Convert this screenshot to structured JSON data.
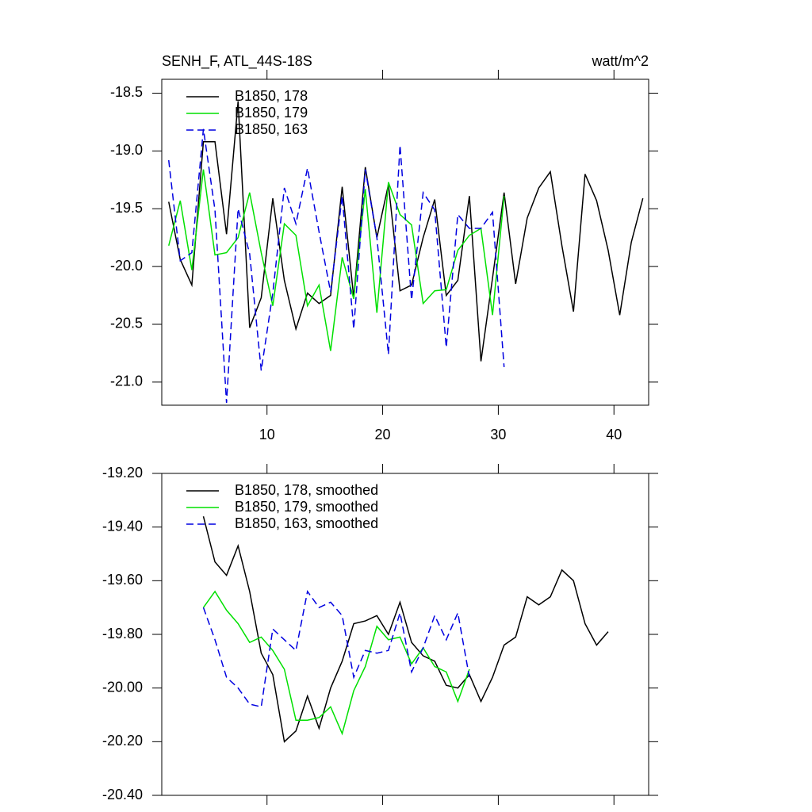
{
  "chart_data": [
    {
      "type": "line",
      "title": "SENH_F, ATL_44S-18S",
      "units": "watt/m^2",
      "x": [
        1.5,
        2.5,
        3.5,
        4.5,
        5.5,
        6.5,
        7.5,
        8.5,
        9.5,
        10.5,
        11.5,
        12.5,
        13.5,
        14.5,
        15.5,
        16.5,
        17.5,
        18.5,
        19.5,
        20.5,
        21.5,
        22.5,
        23.5,
        24.5,
        25.5,
        26.5,
        27.5,
        28.5,
        29.5,
        30.5,
        31.5,
        32.5,
        33.5,
        34.5,
        35.5,
        36.5,
        37.5,
        38.5,
        39.5,
        40.5,
        41.5,
        42.5
      ],
      "series": [
        {
          "name": "B1850, 178",
          "color": "#000000",
          "dash": false,
          "values": [
            -19.44,
            -19.94,
            -20.16,
            -18.92,
            -18.92,
            -19.72,
            -18.57,
            -20.53,
            -20.27,
            -19.41,
            -20.12,
            -20.54,
            -20.23,
            -20.32,
            -20.25,
            -19.31,
            -20.27,
            -19.14,
            -19.75,
            -19.29,
            -20.21,
            -20.16,
            -19.75,
            -19.42,
            -20.25,
            -20.12,
            -19.39,
            -20.82,
            -20.1,
            -19.36,
            -20.15,
            -19.58,
            -19.32,
            -19.18,
            -19.82,
            -20.39,
            -19.2,
            -19.43,
            -19.86,
            -20.42,
            -19.79,
            -19.41
          ]
        },
        {
          "name": "B1850, 179",
          "color": "#00e000",
          "dash": false,
          "values": [
            -19.82,
            -19.43,
            -20.03,
            -19.16,
            -19.9,
            -19.88,
            -19.75,
            -19.36,
            -19.88,
            -20.34,
            -19.63,
            -19.73,
            -20.34,
            -20.16,
            -20.73,
            -19.92,
            -20.28,
            -19.33,
            -20.4,
            -19.27,
            -19.55,
            -19.64,
            -20.32,
            -20.21,
            -20.2,
            -19.86,
            -19.73,
            -19.67,
            -20.42,
            -19.39,
            null,
            null,
            null,
            null,
            null,
            null,
            null,
            null,
            null,
            null,
            null,
            null
          ]
        },
        {
          "name": "B1850, 163",
          "color": "#0000e0",
          "dash": true,
          "values": [
            -19.08,
            -19.95,
            -19.88,
            -18.81,
            -19.51,
            -21.18,
            -19.5,
            -19.89,
            -20.9,
            -20.23,
            -19.32,
            -19.63,
            -19.15,
            -19.7,
            -20.22,
            -19.39,
            -20.54,
            -19.16,
            -19.75,
            -20.76,
            -18.95,
            -20.29,
            -19.36,
            -19.51,
            -20.7,
            -19.55,
            -19.67,
            -19.67,
            -19.53,
            -20.87,
            null,
            null,
            null,
            null,
            null,
            null,
            null,
            null,
            null,
            null,
            null,
            null
          ]
        }
      ],
      "xlim": [
        0.9,
        43
      ],
      "xticks": [
        10,
        20,
        30,
        40
      ],
      "xtick_labels": true,
      "ylim": [
        -21.2,
        -18.38
      ],
      "yticks": [
        -18.5,
        {
          "value": -19,
          "label": "-19.0"
        },
        -19.5,
        {
          "value": -20,
          "label": "-20.0"
        },
        -20.5,
        {
          "value": -21,
          "label": "-21.0"
        }
      ],
      "legend": "top-left"
    },
    {
      "type": "line",
      "x": [
        4.5,
        5.5,
        6.5,
        7.5,
        8.5,
        9.5,
        10.5,
        11.5,
        12.5,
        13.5,
        14.5,
        15.5,
        16.5,
        17.5,
        18.5,
        19.5,
        20.5,
        21.5,
        22.5,
        23.5,
        24.5,
        25.5,
        26.5,
        27.5,
        28.5,
        29.5,
        30.5,
        31.5,
        32.5,
        33.5,
        34.5,
        35.5,
        36.5,
        37.5,
        38.5,
        39.5
      ],
      "series": [
        {
          "name": "B1850, 178, smoothed",
          "color": "#000000",
          "dash": false,
          "values": [
            -19.36,
            -19.53,
            -19.58,
            -19.47,
            -19.64,
            -19.87,
            -19.95,
            -20.2,
            -20.16,
            -20.03,
            -20.15,
            -20.0,
            -19.9,
            -19.76,
            -19.75,
            -19.73,
            -19.8,
            -19.68,
            -19.83,
            -19.88,
            -19.9,
            -19.99,
            -20.0,
            -19.95,
            -20.05,
            -19.96,
            -19.84,
            -19.81,
            -19.66,
            -19.69,
            -19.66,
            -19.56,
            -19.6,
            -19.76,
            -19.84,
            -19.79
          ]
        },
        {
          "name": "B1850, 179, smoothed",
          "color": "#00e000",
          "dash": false,
          "values": [
            -19.7,
            -19.64,
            -19.71,
            -19.76,
            -19.83,
            -19.81,
            -19.86,
            -19.93,
            -20.12,
            -20.12,
            -20.11,
            -20.07,
            -20.17,
            -20.01,
            -19.92,
            -19.77,
            -19.82,
            -19.81,
            -19.91,
            -19.85,
            -19.92,
            -19.94,
            -20.05,
            -19.93,
            null,
            null,
            null,
            null,
            null,
            null,
            null,
            null,
            null,
            null,
            null,
            null
          ]
        },
        {
          "name": "B1850, 163, smoothed",
          "color": "#0000e0",
          "dash": true,
          "values": [
            -19.7,
            -19.82,
            -19.96,
            -20.0,
            -20.06,
            -20.07,
            -19.78,
            -19.82,
            -19.86,
            -19.64,
            -19.7,
            -19.68,
            -19.73,
            -19.96,
            -19.86,
            -19.87,
            -19.86,
            -19.72,
            -19.94,
            -19.85,
            -19.73,
            -19.82,
            -19.72,
            -19.96,
            null,
            null,
            null,
            null,
            null,
            null,
            null,
            null,
            null,
            null,
            null,
            null
          ]
        }
      ],
      "xlim": [
        0.9,
        43
      ],
      "xticks": [
        10,
        20,
        30,
        40
      ],
      "xtick_labels": false,
      "ylim": [
        -20.4,
        -19.2
      ],
      "yticks": [
        {
          "value": -19.2,
          "label": "-19.20"
        },
        {
          "value": -19.4,
          "label": "-19.40"
        },
        {
          "value": -19.6,
          "label": "-19.60"
        },
        {
          "value": -19.8,
          "label": "-19.80"
        },
        {
          "value": -20,
          "label": "-20.00"
        },
        {
          "value": -20.2,
          "label": "-20.20"
        },
        {
          "value": -20.4,
          "label": "-20.40"
        }
      ],
      "legend": "top-left"
    }
  ]
}
